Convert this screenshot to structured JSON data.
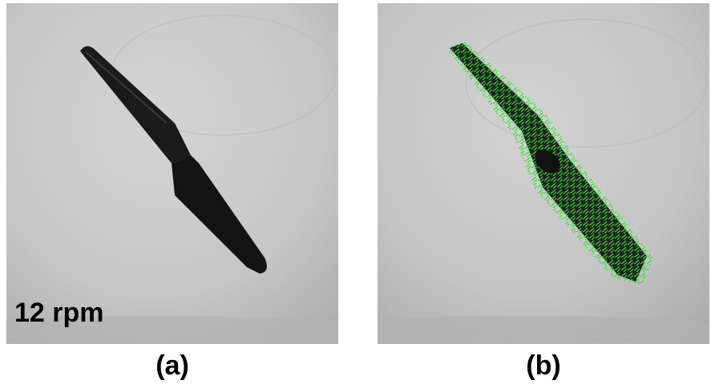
{
  "panels": [
    {
      "id": "a",
      "caption": "(a)",
      "overlay_text": "12 rpm"
    },
    {
      "id": "b",
      "caption": "(b)"
    }
  ],
  "colors": {
    "background_gray": "#c9c9c9",
    "propeller": "#151515",
    "flow_vectors": "#22e622"
  },
  "icons": []
}
